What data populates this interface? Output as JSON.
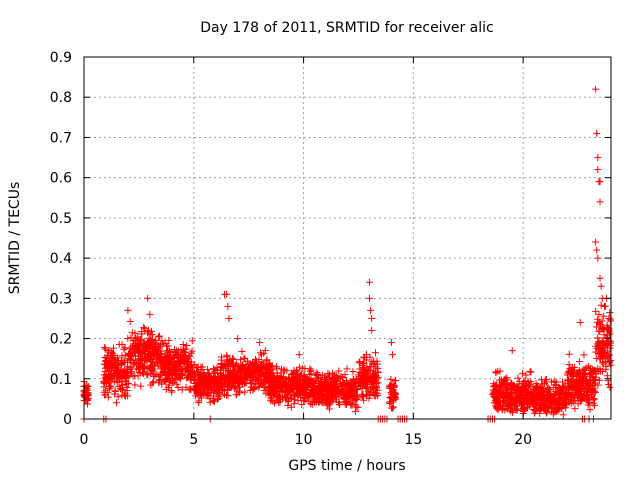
{
  "chart_data": {
    "type": "scatter",
    "title": "Day 178 of 2011, SRMTID for receiver alic",
    "xlabel": "GPS time / hours",
    "ylabel": "SRMTID / TECUs",
    "xlim": [
      0,
      24
    ],
    "ylim": [
      0,
      0.9
    ],
    "xticks": [
      0,
      5,
      10,
      15,
      20
    ],
    "yticks": [
      0,
      0.1,
      0.2,
      0.3,
      0.4,
      0.5,
      0.6,
      0.7,
      0.8,
      0.9
    ],
    "xtick_labels": [
      "0",
      "5",
      "10",
      "15",
      "20"
    ],
    "ytick_labels": [
      "0",
      "0.1",
      "0.2",
      "0.3",
      "0.4",
      "0.5",
      "0.6",
      "0.7",
      "0.8",
      "0.9"
    ],
    "grid": true,
    "marker": "+",
    "color": "#ff0000",
    "series": [
      {
        "name": "SRMTID",
        "segments": [
          {
            "x_start": 0.0,
            "x_end": 0.2,
            "level": 0.06,
            "spread": 0.05
          },
          {
            "x_start": 0.9,
            "x_end": 2.0,
            "level": 0.12,
            "spread": 0.09
          },
          {
            "x_start": 2.0,
            "x_end": 3.5,
            "level": 0.16,
            "spread": 0.09
          },
          {
            "x_start": 3.5,
            "x_end": 5.0,
            "level": 0.13,
            "spread": 0.08
          },
          {
            "x_start": 5.0,
            "x_end": 6.2,
            "level": 0.09,
            "spread": 0.06
          },
          {
            "x_start": 6.2,
            "x_end": 8.5,
            "level": 0.11,
            "spread": 0.07
          },
          {
            "x_start": 8.5,
            "x_end": 10.5,
            "level": 0.08,
            "spread": 0.06
          },
          {
            "x_start": 10.5,
            "x_end": 12.5,
            "level": 0.07,
            "spread": 0.06
          },
          {
            "x_start": 12.5,
            "x_end": 13.4,
            "level": 0.1,
            "spread": 0.08
          },
          {
            "x_start": 13.9,
            "x_end": 14.2,
            "level": 0.06,
            "spread": 0.06
          },
          {
            "x_start": 18.6,
            "x_end": 20.5,
            "level": 0.06,
            "spread": 0.07
          },
          {
            "x_start": 20.5,
            "x_end": 22.0,
            "level": 0.05,
            "spread": 0.06
          },
          {
            "x_start": 22.0,
            "x_end": 23.3,
            "level": 0.09,
            "spread": 0.08
          },
          {
            "x_start": 23.3,
            "x_end": 24.0,
            "level": 0.18,
            "spread": 0.12
          }
        ],
        "zero_points": [
          0.0,
          0.9,
          1.0,
          5.75,
          13.4,
          13.5,
          13.6,
          13.7,
          13.8,
          14.3,
          14.4,
          14.5,
          14.6,
          14.7,
          18.4,
          18.5,
          18.6,
          18.7,
          22.7,
          22.8,
          23.0,
          23.2
        ],
        "spikes": [
          {
            "x": 2.0,
            "y": 0.27
          },
          {
            "x": 2.9,
            "y": 0.3
          },
          {
            "x": 3.0,
            "y": 0.26
          },
          {
            "x": 6.4,
            "y": 0.31
          },
          {
            "x": 6.5,
            "y": 0.31
          },
          {
            "x": 6.55,
            "y": 0.28
          },
          {
            "x": 6.6,
            "y": 0.25
          },
          {
            "x": 7.0,
            "y": 0.2
          },
          {
            "x": 8.0,
            "y": 0.19
          },
          {
            "x": 9.8,
            "y": 0.16
          },
          {
            "x": 13.0,
            "y": 0.34
          },
          {
            "x": 13.0,
            "y": 0.3
          },
          {
            "x": 13.05,
            "y": 0.27
          },
          {
            "x": 13.1,
            "y": 0.25
          },
          {
            "x": 13.1,
            "y": 0.22
          },
          {
            "x": 14.0,
            "y": 0.19
          },
          {
            "x": 14.05,
            "y": 0.16
          },
          {
            "x": 19.5,
            "y": 0.17
          },
          {
            "x": 22.6,
            "y": 0.24
          },
          {
            "x": 23.3,
            "y": 0.82
          },
          {
            "x": 23.35,
            "y": 0.71
          },
          {
            "x": 23.4,
            "y": 0.65
          },
          {
            "x": 23.4,
            "y": 0.62
          },
          {
            "x": 23.45,
            "y": 0.59
          },
          {
            "x": 23.5,
            "y": 0.59
          },
          {
            "x": 23.5,
            "y": 0.54
          },
          {
            "x": 23.3,
            "y": 0.44
          },
          {
            "x": 23.35,
            "y": 0.42
          },
          {
            "x": 23.4,
            "y": 0.4
          },
          {
            "x": 23.5,
            "y": 0.35
          },
          {
            "x": 23.55,
            "y": 0.33
          },
          {
            "x": 23.6,
            "y": 0.3
          },
          {
            "x": 23.7,
            "y": 0.28
          },
          {
            "x": 23.45,
            "y": 0.26
          },
          {
            "x": 23.8,
            "y": 0.3
          },
          {
            "x": 23.9,
            "y": 0.25
          }
        ]
      }
    ]
  }
}
